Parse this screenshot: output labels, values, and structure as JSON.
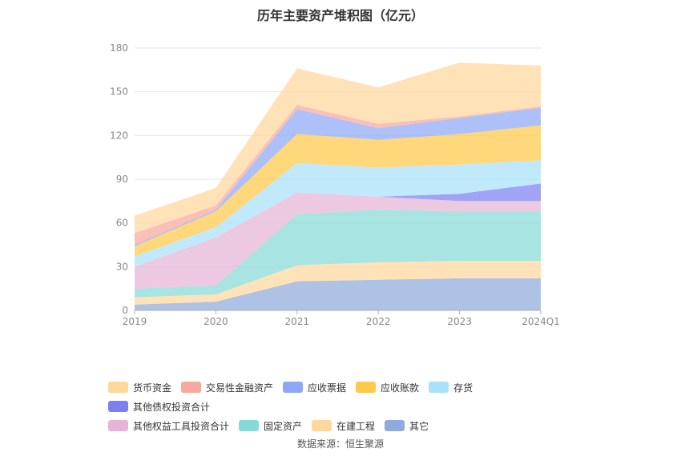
{
  "chart_data": {
    "type": "area",
    "stacked": true,
    "title": "历年主要资产堆积图（亿元）",
    "categories": [
      "2019",
      "2020",
      "2021",
      "2022",
      "2023",
      "2024Q1"
    ],
    "y_ticks": [
      "0",
      "30",
      "60",
      "90",
      "120",
      "150",
      "180"
    ],
    "ylim": [
      0,
      180
    ],
    "grid": true,
    "legend_position": "bottom",
    "series": [
      {
        "name": "其它",
        "color": "#8faadc",
        "values": [
          4,
          6,
          20,
          21,
          22,
          22
        ]
      },
      {
        "name": "在建工程",
        "color": "#ffd79b",
        "values": [
          5,
          5,
          11,
          12,
          12,
          12
        ]
      },
      {
        "name": "固定资产",
        "color": "#86d9d6",
        "values": [
          6,
          6,
          35,
          36,
          34,
          34
        ]
      },
      {
        "name": "其他权益工具投资合计",
        "color": "#e6b4d6",
        "values": [
          15,
          33,
          15,
          9,
          7,
          7
        ]
      },
      {
        "name": "其他债权投资合计",
        "color": "#7d7ff0",
        "values": [
          0,
          0,
          0,
          0,
          5,
          12
        ]
      },
      {
        "name": "存货",
        "color": "#a8e2fa",
        "values": [
          7,
          7,
          20,
          20,
          20,
          16
        ]
      },
      {
        "name": "应收账款",
        "color": "#ffc94a",
        "values": [
          7,
          11,
          20,
          19,
          21,
          24
        ]
      },
      {
        "name": "应收票据",
        "color": "#8ea8f8",
        "values": [
          1,
          1,
          17,
          8,
          11,
          12
        ]
      },
      {
        "name": "交易性金融资产",
        "color": "#f8a89c",
        "values": [
          8,
          3,
          3,
          3,
          1,
          1
        ]
      },
      {
        "name": "货币资金",
        "color": "#ffd79b",
        "values": [
          12,
          12,
          25,
          25,
          37,
          28
        ]
      }
    ],
    "legend": {
      "row1": [
        "货币资金",
        "交易性金融资产",
        "应收票据",
        "应收账款",
        "存货",
        "其他债权投资合计"
      ],
      "row2": [
        "其他权益工具投资合计",
        "固定资产",
        "在建工程",
        "其它"
      ]
    },
    "source": "数据来源：恒生聚源"
  }
}
